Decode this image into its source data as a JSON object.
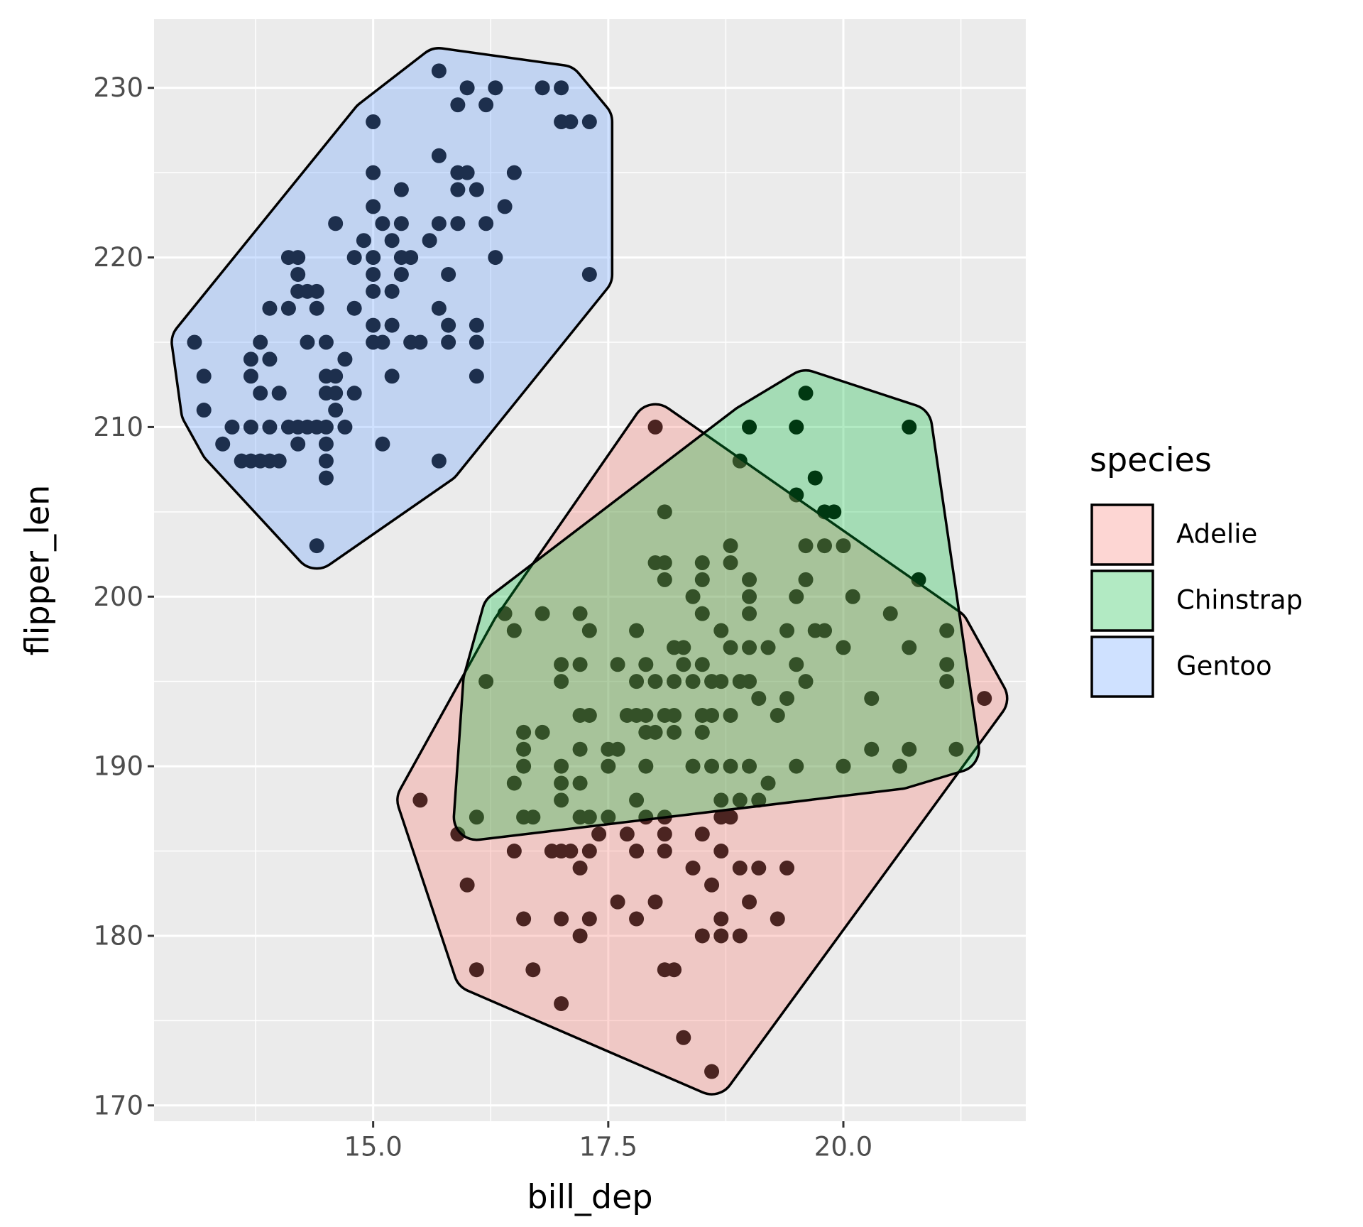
{
  "chart_data": {
    "type": "scatter",
    "x_label": "bill_dep",
    "y_label": "flipper_len",
    "legend_title": "species",
    "xlim": [
      12.67,
      21.94
    ],
    "ylim": [
      169.07,
      234.05
    ],
    "xticks": [
      {
        "value": 15,
        "label": "15.0"
      },
      17.5,
      {
        "value": 20,
        "label": "20.0"
      }
    ],
    "yticks": [
      170,
      180,
      190,
      200,
      210,
      220,
      230
    ],
    "grid": true,
    "point_color": "#000000",
    "legend_position": "right",
    "series": [
      {
        "name": "Adelie",
        "color": "#F8766D",
        "x": [
          18.0,
          15.5,
          15.9,
          16.0,
          16.6,
          16.1,
          16.7,
          17.0,
          18.6,
          19.4,
          19.3,
          20.0,
          21.1,
          21.1,
          21.1,
          21.5,
          20.7,
          18.9,
          16.8,
          17.2,
          16.5,
          17.8,
          17.0,
          17.2,
          17.0,
          17.6,
          17.9,
          17.8,
          18.0,
          18.2,
          18.3,
          18.5,
          18.4,
          18.6,
          18.7,
          18.3,
          18.2,
          18.5,
          18.1,
          18.0,
          18.1,
          18.5,
          17.2,
          17.3,
          17.7,
          17.8,
          17.9,
          18.1,
          18.2,
          18.5,
          18.6,
          18.8,
          16.6,
          17.9,
          18.0,
          18.2,
          18.5,
          16.6,
          16.6,
          17.2,
          17.5,
          17.6,
          17.0,
          17.0,
          17.0,
          17.2,
          17.5,
          17.9,
          18.4,
          18.6,
          18.8,
          19.0,
          19.2,
          18.7,
          18.9,
          19.1,
          17.8,
          18.1,
          17.9,
          17.2,
          17.3,
          17.5,
          16.6,
          16.7,
          17.4,
          17.7,
          18.1,
          18.5,
          18.7,
          18.8,
          16.5,
          16.9,
          17.0,
          17.1,
          17.3,
          17.8,
          18.1,
          18.7,
          17.2,
          18.4,
          18.9,
          19.1,
          18.6,
          17.6,
          18.0,
          19.0,
          17.0,
          17.3,
          17.8,
          18.7,
          17.2,
          18.5,
          18.7,
          18.1,
          18.2,
          18.3
        ],
        "values": [
          210,
          188,
          186,
          183,
          181,
          178,
          178,
          176,
          172,
          184,
          181,
          190,
          198,
          196,
          195,
          194,
          197,
          180,
          199,
          199,
          198,
          198,
          196,
          196,
          195,
          196,
          196,
          195,
          195,
          195,
          196,
          196,
          195,
          195,
          195,
          197,
          197,
          201,
          201,
          202,
          202,
          202,
          193,
          193,
          193,
          193,
          193,
          193,
          193,
          193,
          193,
          193,
          192,
          192,
          192,
          192,
          192,
          191,
          190,
          191,
          191,
          191,
          190,
          189,
          188,
          189,
          190,
          190,
          190,
          190,
          190,
          190,
          189,
          188,
          188,
          188,
          188,
          187,
          187,
          187,
          187,
          187,
          187,
          187,
          186,
          186,
          186,
          186,
          187,
          187,
          185,
          185,
          185,
          185,
          185,
          185,
          185,
          185,
          184,
          184,
          184,
          184,
          183,
          182,
          182,
          182,
          181,
          181,
          181,
          181,
          180,
          180,
          180,
          178,
          178,
          174
        ]
      },
      {
        "name": "Chinstrap",
        "color": "#00BA38",
        "x": [
          19.6,
          19.5,
          20.7,
          19.0,
          18.9,
          19.7,
          19.5,
          19.8,
          19.9,
          19.6,
          19.8,
          20.0,
          20.8,
          20.1,
          20.5,
          19.7,
          19.8,
          20.0,
          20.3,
          20.3,
          20.7,
          21.2,
          20.6,
          19.5,
          19.6,
          19.5,
          19.4,
          19.5,
          19.6,
          19.0,
          19.0,
          19.0,
          18.8,
          18.8,
          19.2,
          19.0,
          18.8,
          19.1,
          19.0,
          18.9,
          19.4,
          19.3,
          18.7,
          18.5,
          18.4,
          18.1,
          16.4,
          16.2,
          16.5,
          16.1,
          16.8,
          17.3
        ],
        "values": [
          212,
          210,
          210,
          210,
          208,
          207,
          206,
          205,
          205,
          203,
          203,
          203,
          201,
          200,
          199,
          198,
          198,
          197,
          194,
          191,
          191,
          191,
          190,
          190,
          195,
          196,
          198,
          200,
          201,
          201,
          200,
          199,
          203,
          202,
          197,
          197,
          197,
          194,
          195,
          195,
          194,
          193,
          198,
          199,
          200,
          205,
          199,
          195,
          189,
          187,
          192,
          198
        ]
      },
      {
        "name": "Gentoo",
        "color": "#619CFF",
        "x": [
          15.7,
          16.0,
          16.3,
          16.8,
          17.0,
          15.9,
          16.2,
          17.0,
          17.1,
          17.3,
          15.0,
          15.7,
          15.9,
          16.0,
          16.5,
          15.0,
          15.3,
          15.9,
          16.1,
          16.4,
          15.0,
          15.1,
          15.3,
          15.7,
          15.9,
          16.2,
          14.6,
          14.9,
          15.2,
          15.6,
          14.1,
          14.2,
          14.8,
          15.0,
          15.3,
          15.4,
          16.3,
          14.2,
          15.0,
          15.3,
          15.8,
          17.3,
          14.2,
          14.3,
          14.4,
          15.0,
          15.2,
          13.9,
          14.1,
          14.4,
          14.8,
          15.7,
          15.0,
          15.2,
          15.8,
          16.1,
          13.1,
          13.8,
          14.3,
          14.5,
          15.0,
          15.1,
          15.4,
          15.5,
          15.8,
          16.1,
          13.7,
          13.9,
          14.7,
          13.2,
          13.7,
          14.5,
          14.6,
          15.2,
          16.1,
          13.8,
          14.0,
          14.5,
          14.6,
          14.8,
          14.6,
          13.2,
          13.5,
          13.7,
          13.9,
          14.1,
          14.2,
          14.3,
          14.4,
          14.5,
          14.7,
          13.4,
          14.2,
          14.5,
          15.1,
          13.6,
          13.7,
          13.8,
          13.9,
          14.0,
          14.5,
          15.7,
          14.5,
          14.4
        ],
        "values": [
          231,
          230,
          230,
          230,
          230,
          229,
          229,
          228,
          228,
          228,
          228,
          226,
          225,
          225,
          225,
          225,
          224,
          224,
          224,
          223,
          223,
          222,
          222,
          222,
          222,
          222,
          222,
          221,
          221,
          221,
          220,
          220,
          220,
          220,
          220,
          220,
          220,
          219,
          219,
          219,
          219,
          219,
          218,
          218,
          218,
          218,
          218,
          217,
          217,
          217,
          217,
          217,
          216,
          216,
          216,
          216,
          215,
          215,
          215,
          215,
          215,
          215,
          215,
          215,
          215,
          215,
          214,
          214,
          214,
          213,
          213,
          213,
          213,
          213,
          213,
          212,
          212,
          212,
          212,
          212,
          211,
          211,
          210,
          210,
          210,
          210,
          210,
          210,
          210,
          210,
          210,
          209,
          209,
          209,
          209,
          208,
          208,
          208,
          208,
          208,
          208,
          208,
          207,
          203
        ]
      }
    ]
  }
}
